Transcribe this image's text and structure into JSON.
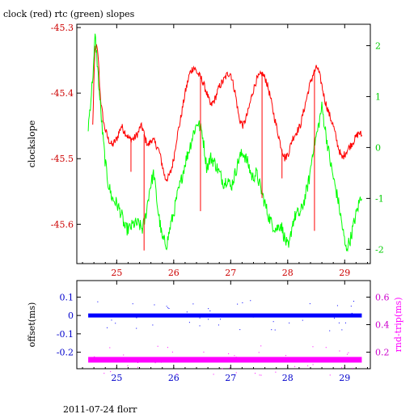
{
  "chart_data": [
    {
      "type": "line",
      "title": "clock (red) rtc (green) slopes",
      "xlabel": "",
      "ylabel": "clockslope",
      "x_ticks": [
        25,
        26,
        27,
        28,
        29
      ],
      "xlim": [
        24.3,
        29.45
      ],
      "ylim_left": [
        -45.66,
        -45.295
      ],
      "y_ticks_left": [
        "-45.3",
        "-45.4",
        "-45.5",
        "-45.6"
      ],
      "ylim_right": [
        -2.28,
        2.42
      ],
      "y_ticks_right": [
        "2",
        "1",
        "0",
        "-1",
        "-2"
      ],
      "colors": {
        "axis": "#000000",
        "left_ticks": "#cc0000",
        "right_ticks": "#00cc00",
        "x_ticks": "#cc0000"
      },
      "series": [
        {
          "axis": "left",
          "color": "#ff0000",
          "x": [
            24.58,
            24.6,
            24.62,
            24.65,
            24.68,
            24.7,
            24.73,
            24.78,
            24.85,
            24.92,
            25.0,
            25.08,
            25.15,
            25.22,
            25.3,
            25.38,
            25.42,
            25.46,
            25.5,
            25.55,
            25.62,
            25.7,
            25.75,
            25.8,
            25.85,
            25.9,
            25.95,
            26.0,
            26.05,
            26.12,
            26.2,
            26.28,
            26.35,
            26.42,
            26.5,
            26.58,
            26.65,
            26.72,
            26.8,
            26.88,
            26.95,
            27.0,
            27.08,
            27.15,
            27.22,
            27.3,
            27.38,
            27.45,
            27.55,
            27.62,
            27.68,
            27.75,
            27.8,
            27.88,
            27.95,
            28.02,
            28.08,
            28.15,
            28.22,
            28.3,
            28.38,
            28.45,
            28.52,
            28.58,
            28.65,
            28.72,
            28.8,
            28.88,
            28.95,
            29.02,
            29.1,
            29.18,
            29.25,
            29.3
          ],
          "values": [
            -45.45,
            -45.38,
            -45.33,
            -45.33,
            -45.35,
            -45.39,
            -45.42,
            -45.45,
            -45.47,
            -45.48,
            -45.47,
            -45.45,
            -45.46,
            -45.47,
            -45.47,
            -45.46,
            -45.45,
            -45.455,
            -45.47,
            -45.48,
            -45.47,
            -45.48,
            -45.49,
            -45.51,
            -45.53,
            -45.53,
            -45.52,
            -45.5,
            -45.47,
            -45.44,
            -45.4,
            -45.37,
            -45.36,
            -45.37,
            -45.38,
            -45.4,
            -45.42,
            -45.41,
            -45.39,
            -45.38,
            -45.37,
            -45.37,
            -45.4,
            -45.44,
            -45.45,
            -45.43,
            -45.4,
            -45.38,
            -45.37,
            -45.38,
            -45.4,
            -45.43,
            -45.45,
            -45.48,
            -45.5,
            -45.49,
            -45.47,
            -45.46,
            -45.45,
            -45.42,
            -45.39,
            -45.37,
            -45.36,
            -45.38,
            -45.41,
            -45.43,
            -45.45,
            -45.48,
            -45.5,
            -45.49,
            -45.48,
            -45.47,
            -45.46,
            -45.465
          ]
        },
        {
          "axis": "right",
          "color": "#00ff00",
          "x": [
            24.5,
            24.55,
            24.6,
            24.62,
            24.65,
            24.7,
            24.75,
            24.8,
            24.85,
            24.92,
            25.0,
            25.08,
            25.15,
            25.22,
            25.3,
            25.38,
            25.45,
            25.5,
            25.58,
            25.65,
            25.72,
            25.8,
            25.88,
            25.95,
            26.0,
            26.05,
            26.12,
            26.2,
            26.28,
            26.35,
            26.42,
            26.5,
            26.58,
            26.65,
            26.72,
            26.8,
            26.88,
            26.95,
            27.0,
            27.08,
            27.15,
            27.22,
            27.3,
            27.38,
            27.45,
            27.55,
            27.65,
            27.72,
            27.8,
            27.88,
            27.95,
            28.02,
            28.08,
            28.15,
            28.22,
            28.3,
            28.38,
            28.45,
            28.52,
            28.6,
            28.68,
            28.75,
            28.82,
            28.88,
            28.95,
            29.02,
            29.1,
            29.18,
            29.25,
            29.3
          ],
          "values": [
            0.4,
            1.0,
            1.7,
            2.2,
            1.8,
            1.0,
            0.3,
            -0.3,
            -0.7,
            -1.0,
            -1.1,
            -1.3,
            -1.6,
            -1.6,
            -1.5,
            -1.5,
            -1.6,
            -1.4,
            -0.8,
            -0.5,
            -1.2,
            -1.8,
            -1.9,
            -1.5,
            -1.3,
            -1.0,
            -0.7,
            -0.3,
            0.0,
            0.3,
            0.5,
            0.3,
            -0.4,
            -0.2,
            -0.3,
            -0.5,
            -0.7,
            -0.6,
            -0.8,
            -0.5,
            -0.2,
            -0.1,
            -0.3,
            -0.6,
            -0.5,
            -0.9,
            -1.3,
            -1.5,
            -1.6,
            -1.5,
            -1.8,
            -2.0,
            -1.5,
            -1.3,
            -1.3,
            -1.0,
            -0.6,
            0.0,
            0.3,
            0.8,
            0.2,
            -0.3,
            -0.7,
            -1.0,
            -1.5,
            -2.0,
            -1.8,
            -1.4,
            -1.1,
            -0.9
          ]
        }
      ]
    },
    {
      "type": "scatter",
      "title": "",
      "xlabel": "",
      "ylabel": "offset(ms)",
      "ylabel_right": "rnd-trip(ms)",
      "x_ticks": [
        25,
        26,
        27,
        28,
        29
      ],
      "xlim": [
        24.3,
        29.45
      ],
      "ylim_left": [
        -0.29,
        0.19
      ],
      "y_ticks_left": [
        "0.1",
        "0",
        "-0.1",
        "-0.2"
      ],
      "ylim_right": [
        0.08,
        0.72
      ],
      "y_ticks_right": [
        "0.6",
        "0.4",
        "0.2"
      ],
      "colors": {
        "axis": "#000000",
        "left_ticks": "#0000cc",
        "right_ticks": "#cc00cc",
        "x_ticks": "#0000cc"
      },
      "series": [
        {
          "axis": "left",
          "color": "#0000ff",
          "x_range": [
            24.5,
            29.3
          ],
          "level": 0.0
        },
        {
          "axis": "right",
          "color": "#ff00ff",
          "x_range": [
            24.5,
            29.3
          ],
          "level": 0.145
        }
      ]
    }
  ],
  "footer": "2011-07-24 florr"
}
